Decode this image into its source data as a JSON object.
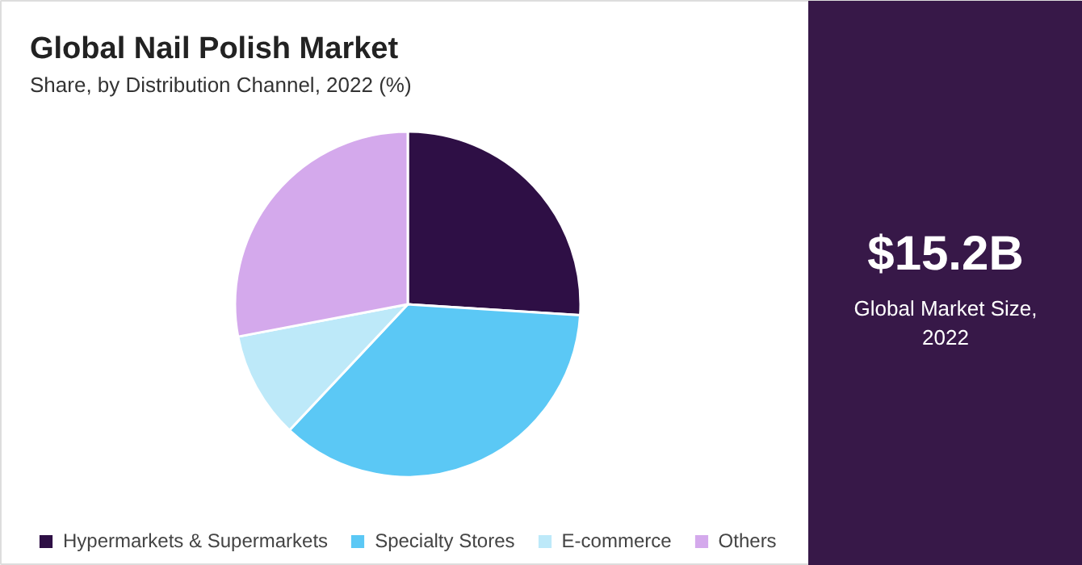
{
  "chart_data": {
    "type": "pie",
    "title": "Global Nail Polish Market",
    "subtitle": "Share, by Distribution Channel, 2022 (%)",
    "categories": [
      "Hypermarkets & Supermarkets",
      "Specialty Stores",
      "E-commerce",
      "Others"
    ],
    "values": [
      26,
      36,
      10,
      28
    ],
    "colors": [
      "#2e0f45",
      "#5bc8f5",
      "#bde9f9",
      "#d4a9ec"
    ],
    "legend": "bottom",
    "annotations": [
      "$15.2B",
      "Global Market Size, 2022"
    ]
  }
}
